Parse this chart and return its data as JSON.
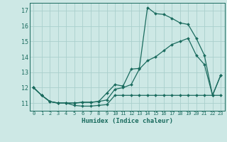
{
  "xlabel": "Humidex (Indice chaleur)",
  "xlim": [
    -0.5,
    23.5
  ],
  "ylim": [
    10.5,
    17.5
  ],
  "xticks": [
    0,
    1,
    2,
    3,
    4,
    5,
    6,
    7,
    8,
    9,
    10,
    11,
    12,
    13,
    14,
    15,
    16,
    17,
    18,
    19,
    20,
    21,
    22,
    23
  ],
  "yticks": [
    11,
    12,
    13,
    14,
    15,
    16,
    17
  ],
  "background_color": "#cde8e5",
  "grid_color": "#aacfcc",
  "line_color": "#1a6b5e",
  "series1": [
    12.0,
    11.5,
    11.1,
    11.0,
    11.0,
    10.85,
    10.8,
    10.8,
    10.85,
    10.9,
    11.5,
    11.5,
    11.5,
    11.5,
    11.5,
    11.5,
    11.5,
    11.5,
    11.5,
    11.5,
    11.5,
    11.5,
    11.5,
    11.5
  ],
  "series2": [
    12.0,
    11.5,
    11.1,
    11.0,
    11.0,
    11.0,
    11.05,
    11.05,
    11.1,
    11.2,
    11.9,
    12.0,
    12.2,
    13.2,
    13.75,
    14.0,
    14.4,
    14.8,
    15.0,
    15.2,
    14.1,
    13.5,
    11.5,
    12.8
  ],
  "series3": [
    12.0,
    11.5,
    11.1,
    11.0,
    11.0,
    11.0,
    11.05,
    11.05,
    11.1,
    11.65,
    12.2,
    12.1,
    13.2,
    13.25,
    17.2,
    16.8,
    16.75,
    16.5,
    16.2,
    16.1,
    15.2,
    14.1,
    11.5,
    12.8
  ]
}
